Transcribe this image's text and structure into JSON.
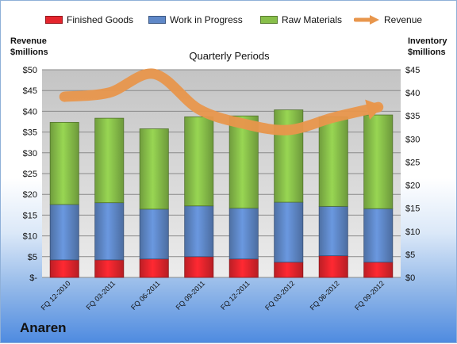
{
  "company": "Anaren",
  "legend": [
    {
      "label": "Finished Goods",
      "color": "#e5252d"
    },
    {
      "label": "Work in Progress",
      "color": "#5f88c8"
    },
    {
      "label": "Raw Materials",
      "color": "#88bf4a"
    },
    {
      "label": "Revenue",
      "color": "#e8964c"
    }
  ],
  "left_axis_title": "Revenue\n$millions",
  "right_axis_title": "Inventory\n$millions",
  "subtitle": "Quarterly Periods",
  "chart_data": {
    "type": "bar",
    "stacked": true,
    "categories": [
      "FQ 12-2010",
      "FQ 03-2011",
      "FQ 06-2011",
      "FQ 09-2011",
      "FQ 12-2011",
      "FQ 03-2012",
      "FQ 06-2012",
      "FQ 09-2012"
    ],
    "series": [
      {
        "name": "Finished Goods",
        "axis": "right",
        "values": [
          3.8,
          3.8,
          4.0,
          4.5,
          4.0,
          3.3,
          4.7,
          3.3
        ]
      },
      {
        "name": "Work in Progress",
        "axis": "right",
        "values": [
          12.0,
          12.4,
          10.8,
          11.0,
          11.0,
          13.0,
          10.7,
          11.6
        ]
      },
      {
        "name": "Raw Materials",
        "axis": "right",
        "values": [
          17.8,
          18.3,
          17.4,
          19.3,
          20.0,
          20.0,
          19.4,
          20.3
        ]
      },
      {
        "name": "Revenue",
        "axis": "left",
        "type": "line",
        "values": [
          43.5,
          44.5,
          49.0,
          40.5,
          37.0,
          35.5,
          38.5,
          41.0
        ]
      }
    ],
    "left_axis": {
      "min": 0,
      "max": 50,
      "step": 5,
      "tick_labels": [
        "$-",
        "$5",
        "$10",
        "$15",
        "$20",
        "$25",
        "$30",
        "$35",
        "$40",
        "$45",
        "$50"
      ]
    },
    "right_axis": {
      "min": 0,
      "max": 45,
      "step": 5,
      "tick_labels": [
        "$0",
        "$5",
        "$10",
        "$15",
        "$20",
        "$25",
        "$30",
        "$35",
        "$40",
        "$45"
      ]
    },
    "grid": true,
    "legend_position": "top"
  }
}
